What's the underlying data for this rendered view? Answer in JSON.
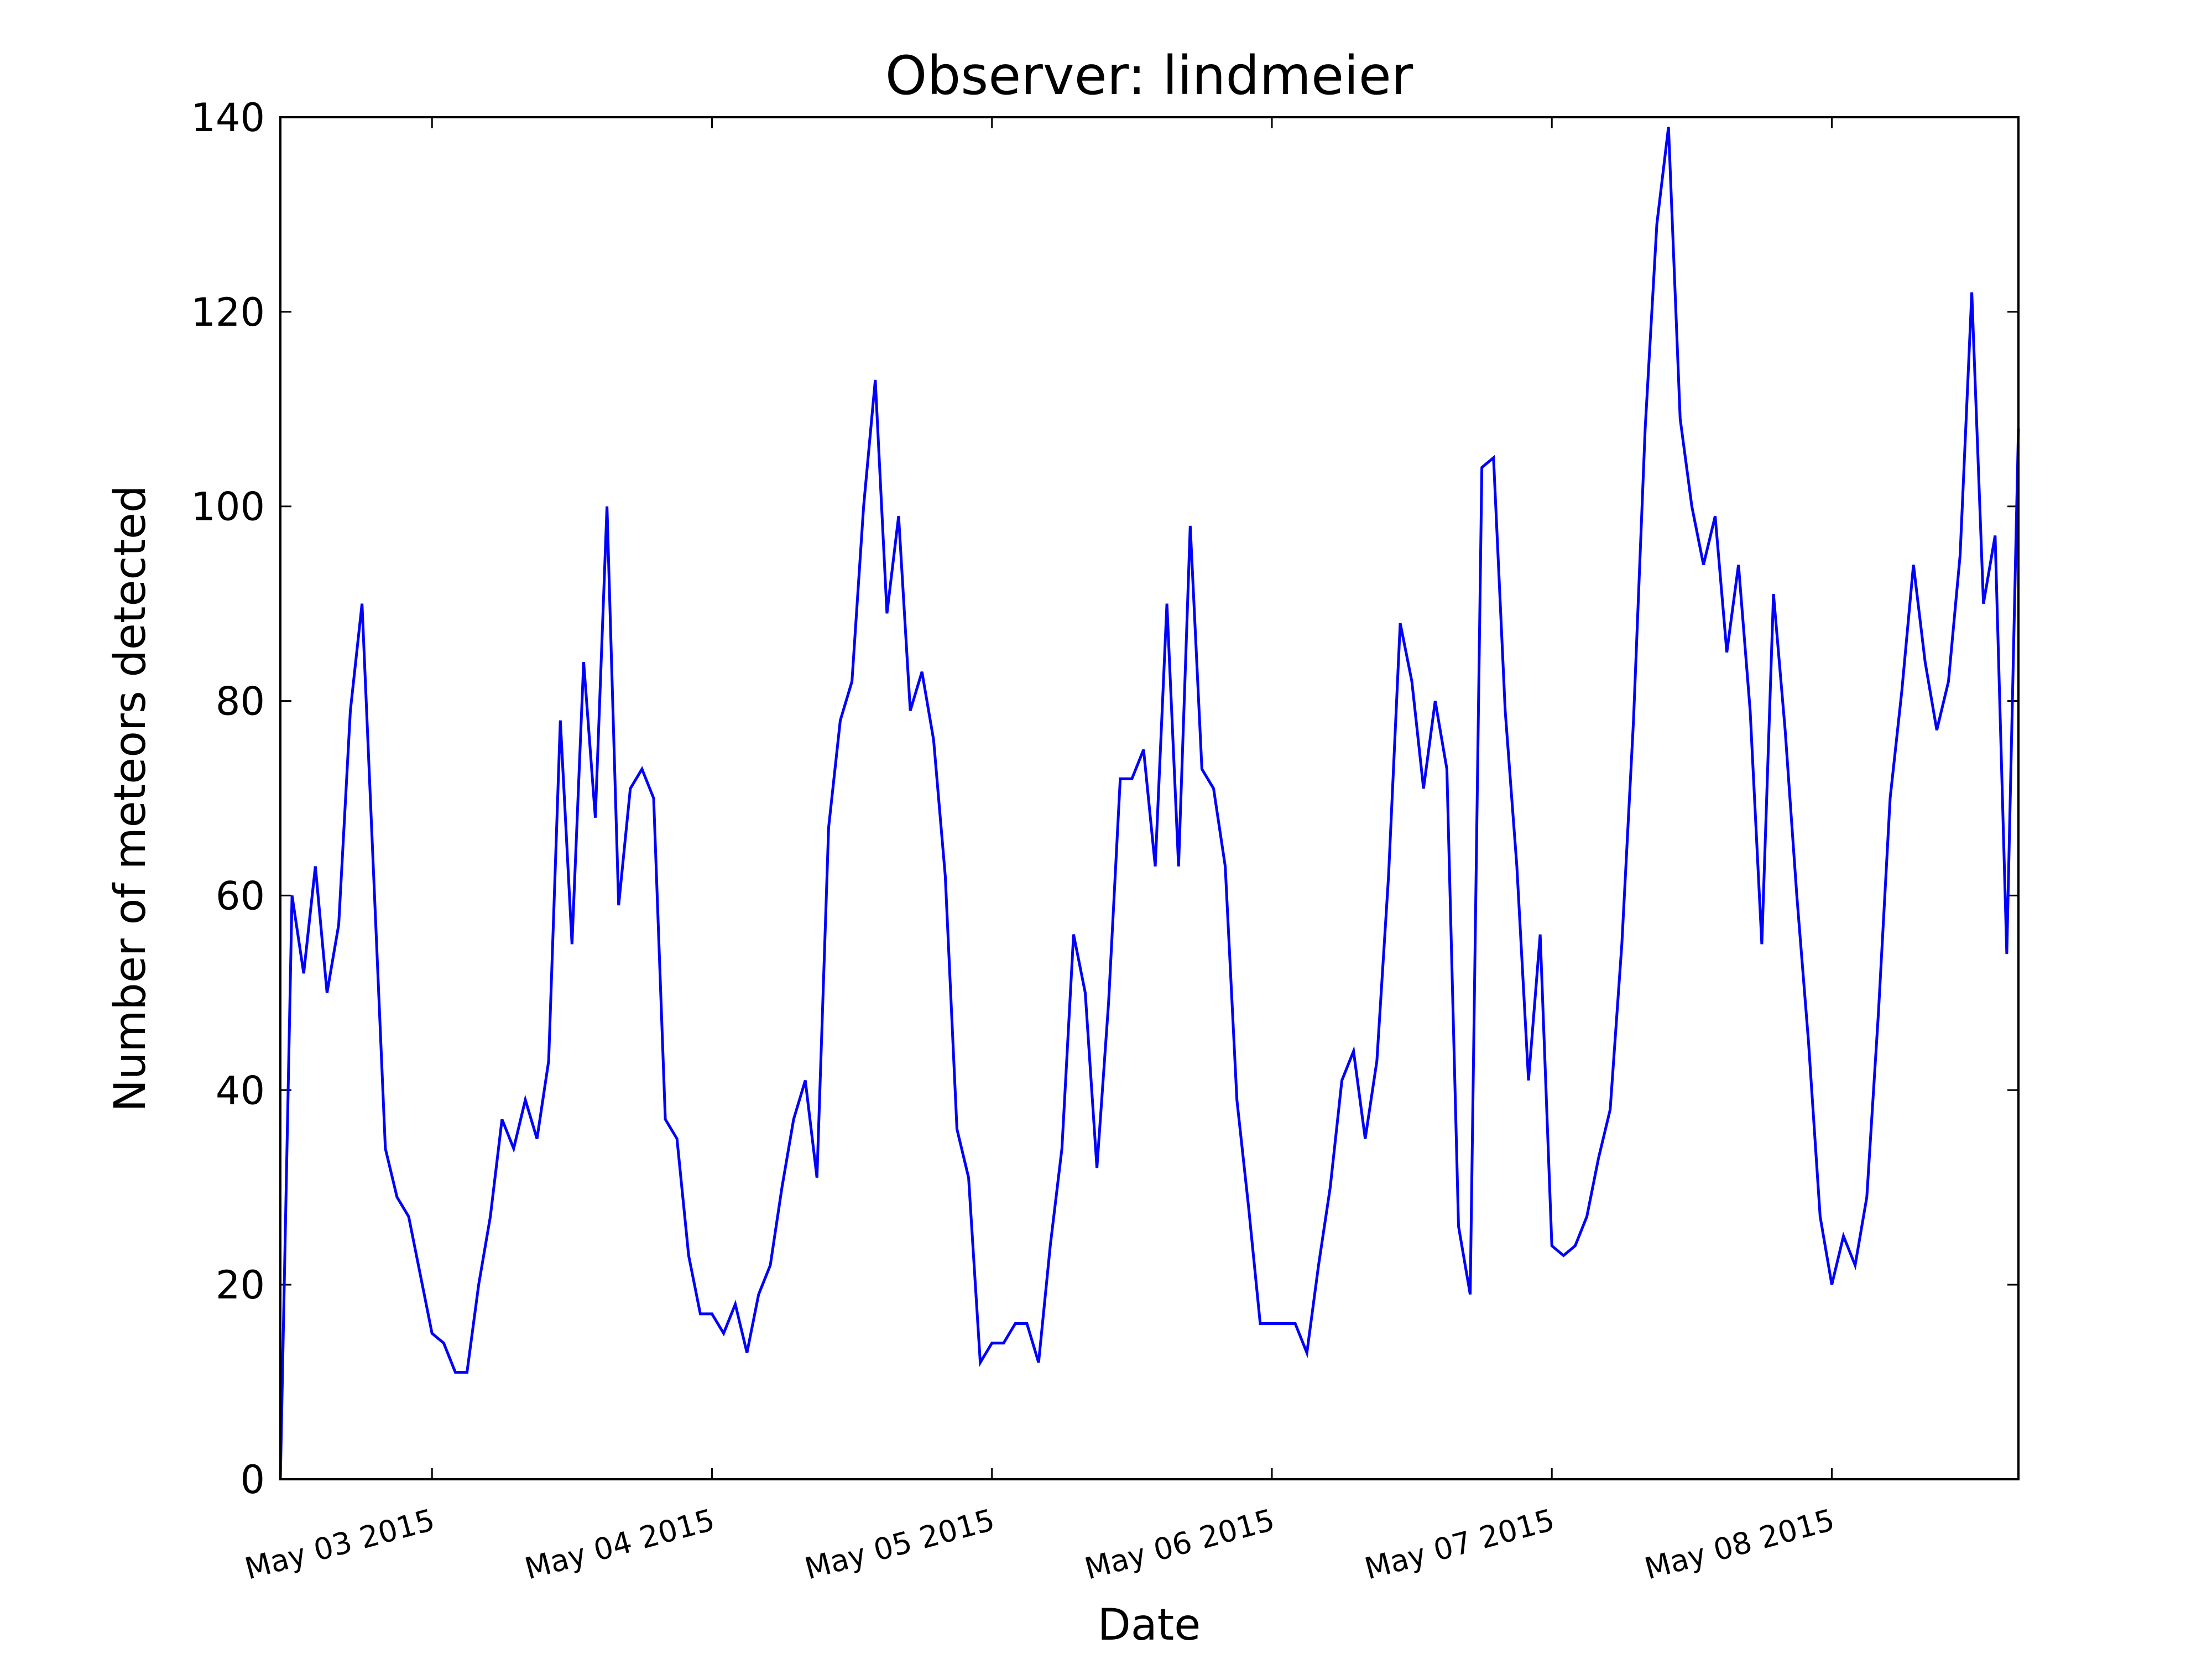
{
  "chart_data": {
    "type": "line",
    "title": "Observer: lindmeier",
    "x_label": "Date",
    "y_label": "Number of meteors detected",
    "x": [
      "2015-05-02 11:00",
      "2015-05-02 12:00",
      "2015-05-02 13:00",
      "2015-05-02 14:00",
      "2015-05-02 15:00",
      "2015-05-02 16:00",
      "2015-05-02 17:00",
      "2015-05-02 18:00",
      "2015-05-02 19:00",
      "2015-05-02 20:00",
      "2015-05-02 21:00",
      "2015-05-02 22:00",
      "2015-05-02 23:00",
      "2015-05-03 00:00",
      "2015-05-03 01:00",
      "2015-05-03 02:00",
      "2015-05-03 03:00",
      "2015-05-03 04:00",
      "2015-05-03 05:00",
      "2015-05-03 06:00",
      "2015-05-03 07:00",
      "2015-05-03 08:00",
      "2015-05-03 09:00",
      "2015-05-03 10:00",
      "2015-05-03 11:00",
      "2015-05-03 12:00",
      "2015-05-03 13:00",
      "2015-05-03 14:00",
      "2015-05-03 15:00",
      "2015-05-03 16:00",
      "2015-05-03 17:00",
      "2015-05-03 18:00",
      "2015-05-03 19:00",
      "2015-05-03 20:00",
      "2015-05-03 21:00",
      "2015-05-03 22:00",
      "2015-05-03 23:00",
      "2015-05-04 00:00",
      "2015-05-04 01:00",
      "2015-05-04 02:00",
      "2015-05-04 03:00",
      "2015-05-04 04:00",
      "2015-05-04 05:00",
      "2015-05-04 06:00",
      "2015-05-04 07:00",
      "2015-05-04 08:00",
      "2015-05-04 09:00",
      "2015-05-04 10:00",
      "2015-05-04 11:00",
      "2015-05-04 12:00",
      "2015-05-04 13:00",
      "2015-05-04 14:00",
      "2015-05-04 15:00",
      "2015-05-04 16:00",
      "2015-05-04 17:00",
      "2015-05-04 18:00",
      "2015-05-04 19:00",
      "2015-05-04 20:00",
      "2015-05-04 21:00",
      "2015-05-04 22:00",
      "2015-05-04 23:00",
      "2015-05-05 00:00",
      "2015-05-05 01:00",
      "2015-05-05 02:00",
      "2015-05-05 03:00",
      "2015-05-05 04:00",
      "2015-05-05 05:00",
      "2015-05-05 06:00",
      "2015-05-05 07:00",
      "2015-05-05 08:00",
      "2015-05-05 09:00",
      "2015-05-05 10:00",
      "2015-05-05 11:00",
      "2015-05-05 12:00",
      "2015-05-05 13:00",
      "2015-05-05 14:00",
      "2015-05-05 15:00",
      "2015-05-05 16:00",
      "2015-05-05 17:00",
      "2015-05-05 18:00",
      "2015-05-05 19:00",
      "2015-05-05 20:00",
      "2015-05-05 21:00",
      "2015-05-05 22:00",
      "2015-05-05 23:00",
      "2015-05-06 00:00",
      "2015-05-06 01:00",
      "2015-05-06 02:00",
      "2015-05-06 03:00",
      "2015-05-06 04:00",
      "2015-05-06 05:00",
      "2015-05-06 06:00",
      "2015-05-06 07:00",
      "2015-05-06 08:00",
      "2015-05-06 09:00",
      "2015-05-06 10:00",
      "2015-05-06 11:00",
      "2015-05-06 12:00",
      "2015-05-06 13:00",
      "2015-05-06 14:00",
      "2015-05-06 15:00",
      "2015-05-06 16:00",
      "2015-05-06 17:00",
      "2015-05-06 18:00",
      "2015-05-06 19:00",
      "2015-05-06 20:00",
      "2015-05-06 21:00",
      "2015-05-06 22:00",
      "2015-05-06 23:00",
      "2015-05-07 00:00",
      "2015-05-07 01:00",
      "2015-05-07 02:00",
      "2015-05-07 03:00",
      "2015-05-07 04:00",
      "2015-05-07 05:00",
      "2015-05-07 06:00",
      "2015-05-07 07:00",
      "2015-05-07 08:00",
      "2015-05-07 09:00",
      "2015-05-07 10:00",
      "2015-05-07 11:00",
      "2015-05-07 12:00",
      "2015-05-07 13:00",
      "2015-05-07 14:00",
      "2015-05-07 15:00",
      "2015-05-07 16:00",
      "2015-05-07 17:00",
      "2015-05-07 18:00",
      "2015-05-07 19:00",
      "2015-05-07 20:00",
      "2015-05-07 21:00",
      "2015-05-07 22:00",
      "2015-05-07 23:00",
      "2015-05-08 00:00",
      "2015-05-08 01:00",
      "2015-05-08 02:00",
      "2015-05-08 03:00",
      "2015-05-08 04:00",
      "2015-05-08 05:00",
      "2015-05-08 06:00",
      "2015-05-08 07:00",
      "2015-05-08 08:00",
      "2015-05-08 09:00",
      "2015-05-08 10:00",
      "2015-05-08 11:00",
      "2015-05-08 12:00",
      "2015-05-08 13:00",
      "2015-05-08 14:00",
      "2015-05-08 15:00",
      "2015-05-08 16:00"
    ],
    "series": [
      {
        "name": "lindmeier",
        "color": "#0000ff",
        "values": [
          0,
          60,
          52,
          63,
          50,
          57,
          79,
          90,
          62,
          34,
          29,
          27,
          21,
          15,
          14,
          11,
          11,
          20,
          27,
          37,
          34,
          39,
          35,
          43,
          78,
          55,
          84,
          68,
          100,
          59,
          71,
          73,
          70,
          37,
          35,
          23,
          17,
          17,
          15,
          18,
          13,
          19,
          22,
          30,
          37,
          41,
          31,
          67,
          78,
          82,
          100,
          113,
          89,
          99,
          79,
          83,
          76,
          62,
          36,
          31,
          12,
          14,
          14,
          16,
          16,
          12,
          24,
          34,
          56,
          50,
          32,
          49,
          72,
          72,
          75,
          63,
          90,
          63,
          98,
          73,
          71,
          63,
          39,
          28,
          16,
          16,
          16,
          16,
          13,
          22,
          30,
          41,
          44,
          35,
          43,
          62,
          88,
          82,
          71,
          80,
          73,
          26,
          19,
          104,
          105,
          79,
          63,
          41,
          56,
          24,
          23,
          24,
          27,
          33,
          38,
          55,
          78,
          108,
          129,
          139,
          109,
          100,
          94,
          99,
          85,
          94,
          79,
          55,
          91,
          77,
          60,
          45,
          27,
          20,
          25,
          22,
          29,
          48,
          70,
          81,
          94,
          84,
          77,
          82,
          95,
          122,
          90,
          97,
          54,
          108
        ]
      }
    ],
    "xlim": [
      "2015-05-02 11:00",
      "2015-05-08 16:00"
    ],
    "xticks": [
      {
        "value": "2015-05-03",
        "label": "May 03 2015"
      },
      {
        "value": "2015-05-04",
        "label": "May 04 2015"
      },
      {
        "value": "2015-05-05",
        "label": "May 05 2015"
      },
      {
        "value": "2015-05-06",
        "label": "May 06 2015"
      },
      {
        "value": "2015-05-07",
        "label": "May 07 2015"
      },
      {
        "value": "2015-05-08",
        "label": "May 08 2015"
      }
    ],
    "ylim": [
      0,
      140
    ],
    "yticks": [
      0,
      20,
      40,
      60,
      80,
      100,
      120,
      140
    ],
    "grid": false
  }
}
